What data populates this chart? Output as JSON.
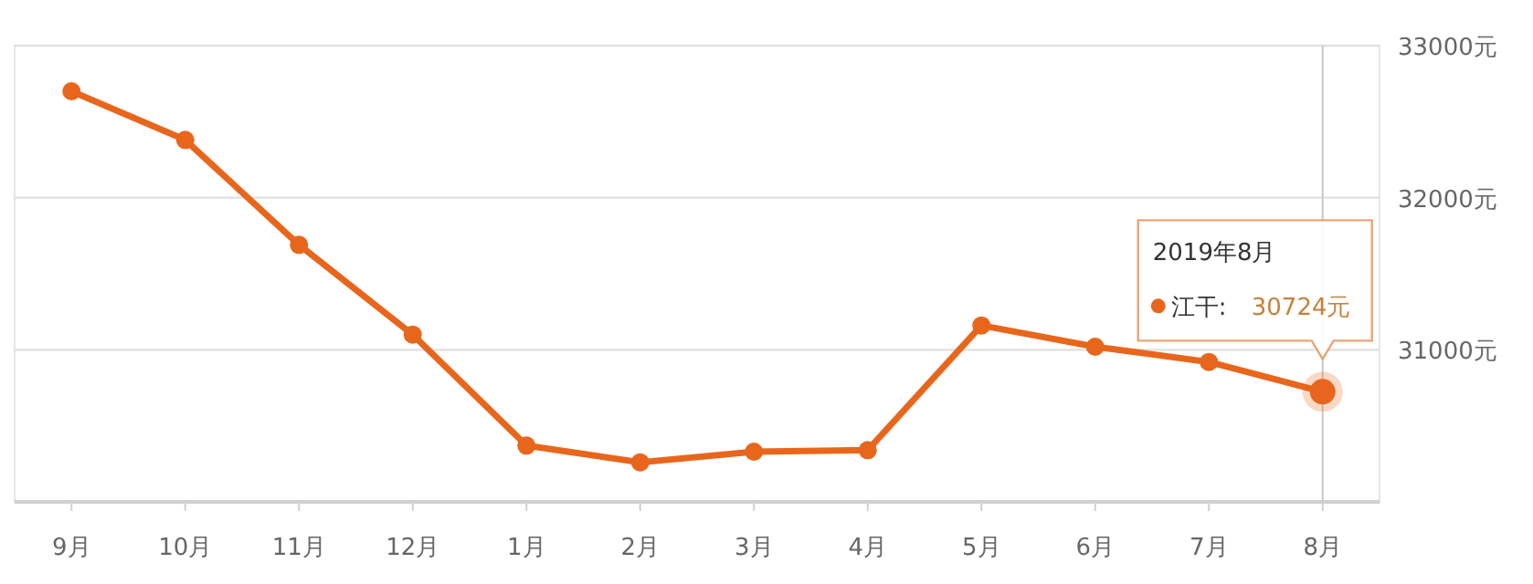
{
  "chart_data": {
    "type": "line",
    "categories": [
      "9月",
      "10月",
      "11月",
      "12月",
      "1月",
      "2月",
      "3月",
      "4月",
      "5月",
      "6月",
      "7月",
      "8月"
    ],
    "series": [
      {
        "name": "江干:",
        "color": "#e8661c",
        "values": [
          32700,
          32380,
          31690,
          31100,
          30370,
          30260,
          30330,
          30340,
          31160,
          31020,
          30920,
          30724
        ],
        "value_labels": [
          null,
          null,
          null,
          null,
          null,
          null,
          null,
          null,
          null,
          null,
          null,
          "30724元"
        ]
      }
    ],
    "ylim": [
      30000,
      33000
    ],
    "yticks": [
      {
        "value": 30000,
        "label": null
      },
      {
        "value": 31000,
        "label": "31000元"
      },
      {
        "value": 32000,
        "label": "32000元"
      },
      {
        "value": 33000,
        "label": "33000元"
      }
    ],
    "grid": "y",
    "marker": "circle",
    "annotations": [
      "2019年8月"
    ],
    "ref_lines": [
      {
        "axis": "x",
        "value": "8月",
        "color": "#c8c8c8"
      }
    ]
  }
}
